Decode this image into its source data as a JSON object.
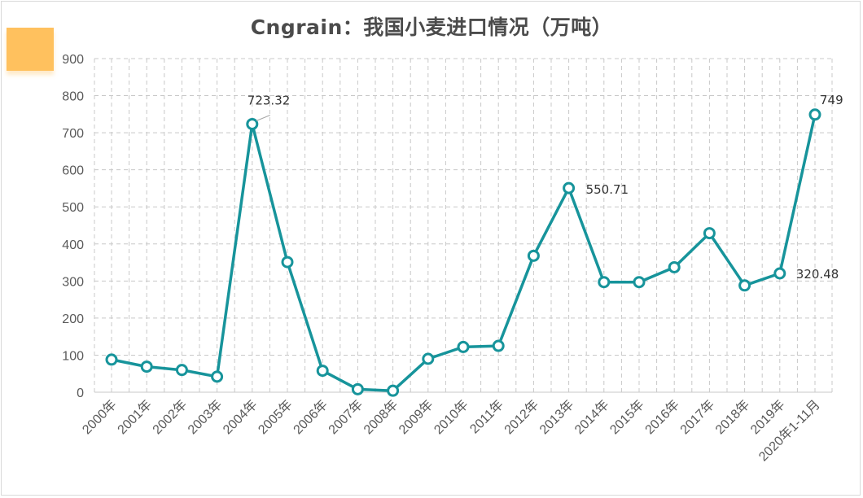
{
  "chart_data": {
    "type": "line",
    "title": "Cngrain：我国小麦进口情况（万吨）",
    "xlabel": "",
    "ylabel": "",
    "categories": [
      "2000年",
      "2001年",
      "2002年",
      "2003年",
      "2004年",
      "2005年",
      "2006年",
      "2007年",
      "2008年",
      "2009年",
      "2010年",
      "2011年",
      "2012年",
      "2013年",
      "2014年",
      "2015年",
      "2016年",
      "2017年",
      "2018年",
      "2019年",
      "2020年1-11月"
    ],
    "series": [
      {
        "values": [
          88,
          69,
          60,
          42,
          723.32,
          351,
          58,
          8,
          4,
          90,
          122,
          125,
          368,
          550.71,
          297,
          297,
          337,
          429,
          288,
          320.48,
          749
        ]
      }
    ],
    "annotations": [
      {
        "index": 4,
        "text": "723.32"
      },
      {
        "index": 13,
        "text": "550.71"
      },
      {
        "index": 19,
        "text": "320.48"
      },
      {
        "index": 20,
        "text": "749"
      }
    ],
    "ylim": [
      0,
      900
    ],
    "yticks": [
      0,
      100,
      200,
      300,
      400,
      500,
      600,
      700,
      800,
      900
    ],
    "grid": true,
    "colors": {
      "line": "#17949b",
      "marker_fill": "#ffffff",
      "grid": "#c8c8c8",
      "accent": "#ffc15e"
    }
  }
}
